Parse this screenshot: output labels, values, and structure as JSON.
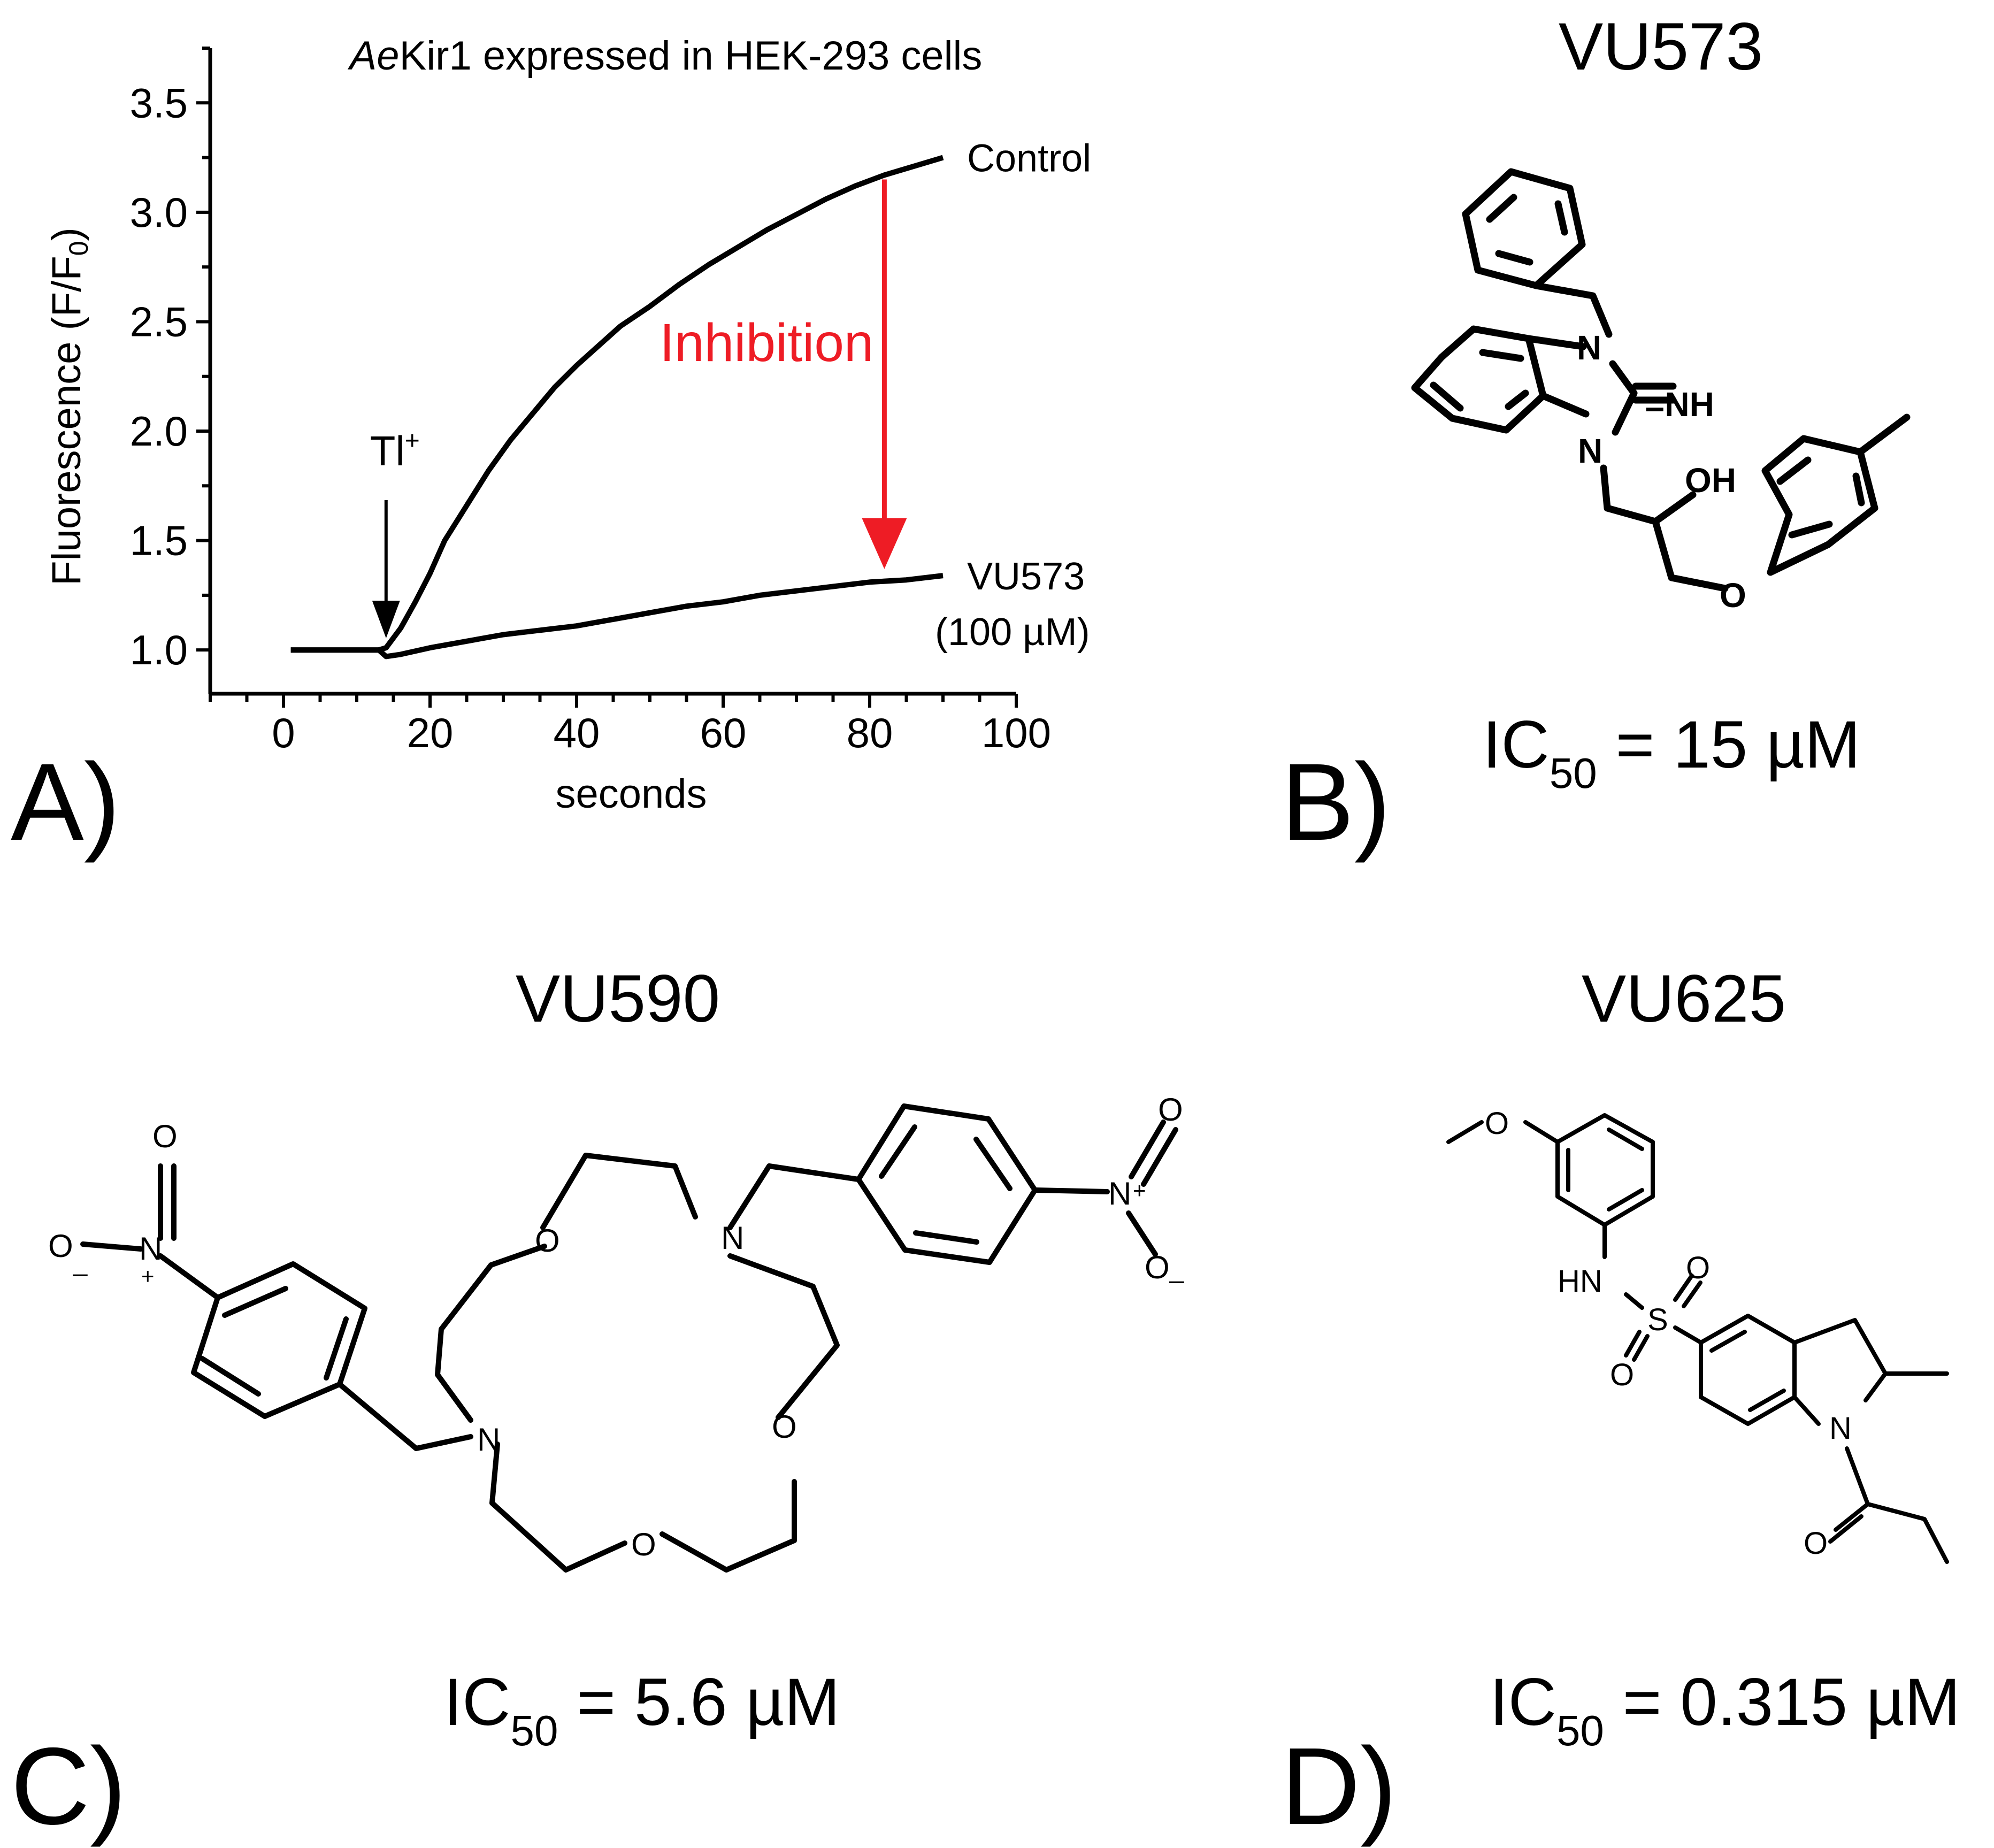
{
  "panels": {
    "a": {
      "letter": "A)"
    },
    "b": {
      "letter": "B)",
      "compound": "VU573",
      "ic50": {
        "prefix": "IC",
        "subscript": "50",
        "value": " = 15 µM"
      },
      "atoms": {
        "n1": "N",
        "n2": "N",
        "nh": "=NH",
        "oh": "OH",
        "o": "O"
      }
    },
    "c": {
      "letter": "C)",
      "compound": "VU590",
      "ic50": {
        "prefix": "IC",
        "subscript": "50",
        "value": " = 5.6 µM"
      },
      "atoms": {
        "n_top": "N",
        "n_bottom": "N",
        "o1": "O",
        "o2": "O",
        "o3": "O",
        "nitro_left_n": "N",
        "nitro_left_plus": "+",
        "nitro_left_o_top": "O",
        "nitro_left_o_minus": "O",
        "nitro_left_minus": "–",
        "nitro_right_n": "N",
        "nitro_right_plus": "+",
        "nitro_right_o_top": "O",
        "nitro_right_o_minus": "O",
        "nitro_right_minus": "–"
      }
    },
    "d": {
      "letter": "D)",
      "compound": "VU625",
      "ic50": {
        "prefix": "IC",
        "subscript": "50",
        "value": " = 0.315 µM"
      },
      "atoms": {
        "methoxy_o": "O",
        "hn": "HN",
        "s": "S",
        "so_top": "O",
        "so_bottom": "O",
        "n": "N",
        "amide_o": "O"
      }
    }
  },
  "chart_data": {
    "type": "line",
    "title_italic": "Ae",
    "title_rest": "Kir1 expressed in HEK-293 cells",
    "xlabel": "seconds",
    "ylabel_main": "Fluorescence (F/F",
    "ylabel_sub": "0",
    "ylabel_close": ")",
    "xlim": [
      -10,
      100
    ],
    "ylim": [
      0.8,
      3.75
    ],
    "xticks": [
      0,
      20,
      40,
      60,
      80,
      100
    ],
    "yticks": [
      1.0,
      1.5,
      2.0,
      2.5,
      3.0,
      3.5
    ],
    "x_minor_step": 5,
    "y_minor_step": 0.25,
    "grid": false,
    "series": [
      {
        "name": "Control",
        "color": "#000000",
        "points": [
          [
            1,
            1.0
          ],
          [
            5,
            1.0
          ],
          [
            10,
            1.0
          ],
          [
            13,
            1.0
          ],
          [
            14,
            1.01
          ],
          [
            16,
            1.1
          ],
          [
            18,
            1.22
          ],
          [
            20,
            1.35
          ],
          [
            22,
            1.5
          ],
          [
            25,
            1.66
          ],
          [
            28,
            1.82
          ],
          [
            31,
            1.96
          ],
          [
            34,
            2.08
          ],
          [
            37,
            2.2
          ],
          [
            40,
            2.3
          ],
          [
            43,
            2.39
          ],
          [
            46,
            2.48
          ],
          [
            50,
            2.57
          ],
          [
            54,
            2.67
          ],
          [
            58,
            2.76
          ],
          [
            62,
            2.84
          ],
          [
            66,
            2.92
          ],
          [
            70,
            2.99
          ],
          [
            74,
            3.06
          ],
          [
            78,
            3.12
          ],
          [
            82,
            3.17
          ],
          [
            86,
            3.21
          ],
          [
            90,
            3.25
          ]
        ]
      },
      {
        "name": "VU573",
        "name_sub": "(100 µM)",
        "color": "#000000",
        "points": [
          [
            1,
            1.0
          ],
          [
            5,
            1.0
          ],
          [
            10,
            1.0
          ],
          [
            13,
            1.0
          ],
          [
            14,
            0.97
          ],
          [
            16,
            0.98
          ],
          [
            20,
            1.01
          ],
          [
            25,
            1.04
          ],
          [
            30,
            1.07
          ],
          [
            35,
            1.09
          ],
          [
            40,
            1.11
          ],
          [
            45,
            1.14
          ],
          [
            50,
            1.17
          ],
          [
            55,
            1.2
          ],
          [
            60,
            1.22
          ],
          [
            65,
            1.25
          ],
          [
            70,
            1.27
          ],
          [
            75,
            1.29
          ],
          [
            80,
            1.31
          ],
          [
            85,
            1.32
          ],
          [
            90,
            1.34
          ]
        ]
      }
    ],
    "annotations": [
      {
        "text": "Tl",
        "superscript": "+",
        "x": 14,
        "type": "arrow-down",
        "color": "#000000"
      },
      {
        "text": "Inhibition",
        "x": 82,
        "y_from": 3.15,
        "y_to": 1.37,
        "type": "arrow-down",
        "color": "#ee1c25"
      }
    ]
  }
}
